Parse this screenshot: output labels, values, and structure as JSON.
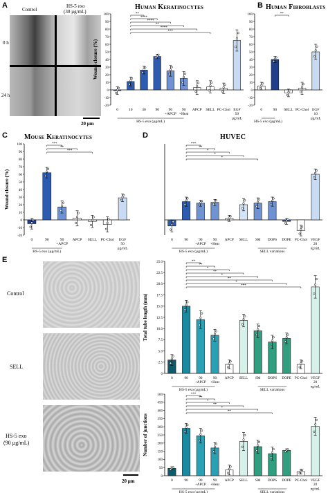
{
  "panels": {
    "A": {
      "letter": "A",
      "col_control": "Control",
      "col_treated": "HS-5 exo",
      "col_treated_conc": "(30 µg/mL)",
      "row_0": "0 h",
      "row_24": "24 h",
      "scale": "20 µm"
    },
    "E": {
      "letter": "E",
      "row_control": "Control",
      "row_sell": "SELL",
      "row_hs5": "HS-5 exo",
      "row_hs5_conc": "(90 µg/mL)",
      "scale": "20 µm"
    }
  },
  "chart_data": [
    {
      "id": "A_chart",
      "type": "bar",
      "title": "Human Keratinocytes",
      "ylabel": "Wound closure (%)",
      "ylim": [
        -20,
        100
      ],
      "yticks": [
        -20,
        -10,
        0,
        10,
        20,
        30,
        40,
        50,
        60,
        70,
        80,
        90,
        100
      ],
      "categories": [
        "0",
        "10",
        "30",
        "90",
        "90 +APCP",
        "90 +Heat",
        "APCP",
        "SELL",
        "PC-Chol",
        "EGF 50 µg/mL"
      ],
      "values": [
        -1,
        11,
        26,
        44,
        25,
        15,
        3,
        4,
        2,
        65
      ],
      "errors": [
        5,
        6,
        5,
        3,
        7,
        9,
        9,
        8,
        7,
        14
      ],
      "colors": [
        "#1f3f8c",
        "#2c5bb0",
        "#2c5bb0",
        "#2c5bb0",
        "#6f92d3",
        "#6f92d3",
        "#ffffff",
        "#ffffff",
        "#ffffff",
        "#c9dbf2"
      ],
      "group_label": "HS-5 exo (µg/mL)",
      "sig": [
        {
          "label": "**"
        },
        {
          "label": "****"
        },
        {
          "label": "****"
        },
        {
          "label": "**"
        },
        {
          "label": "****"
        },
        {
          "label": "***"
        }
      ]
    },
    {
      "id": "B_chart",
      "type": "bar",
      "title": "Human Fibroblasts",
      "ylim": [
        -20,
        100
      ],
      "categories": [
        "0",
        "90",
        "SELL",
        "PC-Chol",
        "EGF 10 µg/mL"
      ],
      "values": [
        5,
        40,
        -4,
        2,
        50
      ],
      "errors": [
        5,
        4,
        5,
        8,
        10
      ],
      "colors": [
        "#ffffff",
        "#1f3f8c",
        "#ffffff",
        "#ffffff",
        "#c9dbf2"
      ],
      "group_label": "HS-5 exo (µg/mL)",
      "sig": [
        {
          "label": "**"
        }
      ]
    },
    {
      "id": "C_chart",
      "type": "bar",
      "title": "Mouse Keratinocytes",
      "ylabel": "Wound closure (%)",
      "ylim": [
        -20,
        100
      ],
      "yticks": [
        -20,
        -10,
        0,
        10,
        20,
        30,
        40,
        50,
        60,
        70,
        80,
        90,
        100
      ],
      "categories": [
        "0",
        "90",
        "90 +APCP",
        "APCP",
        "SELL",
        "PC-Chol",
        "EGF 50 µg/mL"
      ],
      "values": [
        -5,
        62,
        17,
        2,
        -2,
        -6,
        29
      ],
      "errors": [
        7,
        7,
        8,
        10,
        8,
        10,
        5
      ],
      "colors": [
        "#1f3f8c",
        "#2c5bb0",
        "#6f92d3",
        "#ffffff",
        "#ffffff",
        "#ffffff",
        "#c9dbf2"
      ],
      "group_label": "HS-5 exo (µg/mL)",
      "sig": [
        {
          "label": "***"
        },
        {
          "label": "**"
        },
        {
          "label": "***"
        }
      ]
    },
    {
      "id": "D_chart",
      "type": "bar",
      "title": "HUVEC",
      "ylim": [
        -20,
        100
      ],
      "categories": [
        "0",
        "90",
        "90 +APCP",
        "90 +Heat",
        "APCP",
        "SELL",
        "SM",
        "DOPS",
        "DOPE",
        "PC-Chol",
        "VEGF 20 ng/mL"
      ],
      "values": [
        -8,
        24,
        22,
        23,
        2,
        20,
        22,
        24,
        -2,
        -14,
        60
      ],
      "errors": [
        8,
        6,
        4,
        4,
        4,
        8,
        7,
        6,
        4,
        7,
        7
      ],
      "colors": [
        "#2c5bb0",
        "#2c5bb0",
        "#6f92d3",
        "#6f92d3",
        "#ffffff",
        "#d4e4f7",
        "#6f92d3",
        "#6f92d3",
        "#2c5bb0",
        "#ffffff",
        "#c9dbf2"
      ],
      "group_label": "HS-5 exo (µg/mL)",
      "group_label2": "SELL variations",
      "sig": [
        {
          "label": "***"
        },
        {
          "label": "**"
        },
        {
          "label": "*"
        },
        {
          "label": "*"
        },
        {
          "label": "*"
        }
      ]
    },
    {
      "id": "E_top",
      "type": "bar",
      "ylabel": "Total tube length (mm)",
      "ylim": [
        0,
        25
      ],
      "yticks": [
        "0",
        "2.5",
        "5.0",
        "7.5",
        "10.0",
        "12.5",
        "15.0",
        "17.5",
        "20.0",
        "22.5",
        "25.0"
      ],
      "categories": [
        "0",
        "90",
        "90 +APCP",
        "90 +Heat",
        "APCP",
        "SELL",
        "SM",
        "DOPS",
        "DOPE",
        "PC-Chol",
        "VEGF 20 ng/mL"
      ],
      "values": [
        3,
        15,
        12,
        8.5,
        2,
        11.8,
        9.5,
        7,
        7.8,
        2,
        19.3
      ],
      "errors": [
        1.2,
        1.3,
        2,
        1.3,
        1,
        1.4,
        1.5,
        1.5,
        1.2,
        1,
        2.5
      ],
      "colors": [
        "#0d5c6b",
        "#1a8aa0",
        "#2aa0b5",
        "#2aa0b5",
        "#ffffff",
        "#d6f0ea",
        "#2f9f7f",
        "#2f9f7f",
        "#2f9f7f",
        "#ffffff",
        "#d6f0ea"
      ],
      "group_label": "HS-5 exo (µg/mL)",
      "group_label2": "SELL variations",
      "sig": [
        {
          "label": "**"
        },
        {
          "label": "**"
        },
        {
          "label": "*"
        },
        {
          "label": "**"
        },
        {
          "label": "*"
        },
        {
          "label": "**"
        },
        {
          "label": "*"
        },
        {
          "label": "***"
        }
      ]
    },
    {
      "id": "E_bottom",
      "type": "bar",
      "ylabel": "Number of junctions",
      "ylim": [
        0,
        500
      ],
      "yticks": [
        "0",
        "50",
        "100",
        "150",
        "200",
        "250",
        "300",
        "350",
        "400",
        "450",
        "500"
      ],
      "categories": [
        "0",
        "90",
        "90 +APCP",
        "90 +Heat",
        "APCP",
        "SELL",
        "SM",
        "DOPS",
        "DOPE",
        "PC-Chol",
        "VEGF 20 ng/mL"
      ],
      "values": [
        45,
        290,
        245,
        170,
        35,
        210,
        178,
        135,
        155,
        25,
        303
      ],
      "errors": [
        10,
        30,
        45,
        35,
        30,
        55,
        40,
        40,
        10,
        15,
        55
      ],
      "colors": [
        "#0d5c6b",
        "#1a8aa0",
        "#2aa0b5",
        "#2aa0b5",
        "#ffffff",
        "#d6f0ea",
        "#2f9f7f",
        "#2f9f7f",
        "#2f9f7f",
        "#ffffff",
        "#d6f0ea"
      ],
      "group_label": "HS-5 exo (µg/mL)",
      "group_label2": "SELL variations",
      "sig": [
        {
          "label": "***"
        },
        {
          "label": "**"
        },
        {
          "label": "*"
        },
        {
          "label": "**"
        },
        {
          "label": "*"
        },
        {
          "label": "**"
        }
      ]
    }
  ]
}
